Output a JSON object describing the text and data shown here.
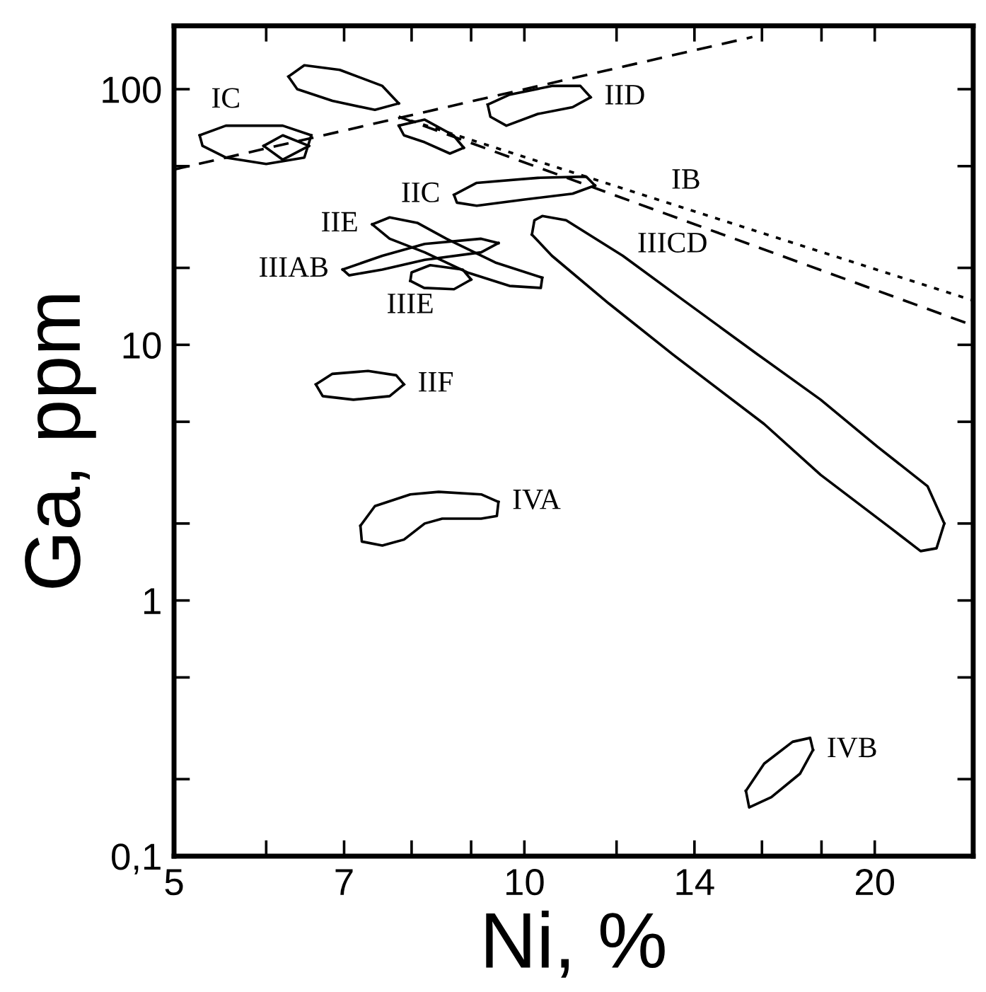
{
  "chart_data": {
    "type": "line",
    "xlabel": "Ni, %",
    "ylabel": "Ga, ppm",
    "log": "xy",
    "xlim": [
      5,
      24.3
    ],
    "ylim": [
      0.1,
      177
    ],
    "xticks": [
      5,
      {
        "value": 6,
        "label": null
      },
      7,
      {
        "value": 8,
        "label": null
      },
      {
        "value": 9,
        "label": null
      },
      10,
      {
        "value": 12,
        "label": null
      },
      14,
      {
        "value": 16,
        "label": null
      },
      {
        "value": 18,
        "label": null
      },
      20
    ],
    "yticks": [
      {
        "value": 0.1,
        "label": "0,1"
      },
      {
        "value": 0.2,
        "label": null
      },
      {
        "value": 0.5,
        "label": null
      },
      1,
      {
        "value": 2,
        "label": null
      },
      {
        "value": 5,
        "label": null
      },
      10,
      {
        "value": 20,
        "label": null
      },
      {
        "value": 50,
        "label": null
      },
      100
    ],
    "grid": false,
    "marker": "none",
    "series": [
      {
        "name": "IID",
        "color": "#000000",
        "line_style": "solid",
        "x": [
          9.3,
          9.7,
          10.56,
          11.17,
          11.4
        ],
        "values": [
          87,
          95,
          103,
          103,
          93
        ]
      },
      {
        "color": "#000000",
        "line_style": "solid",
        "x": [
          9.3,
          9.35,
          9.65,
          10.27,
          11.0,
          11.4
        ],
        "values": [
          87,
          78,
          72,
          80,
          85,
          93
        ]
      },
      {
        "name": "IIC",
        "color": "#000000",
        "line_style": "solid",
        "x": [
          8.7,
          9.1,
          10.27,
          11.3,
          11.5
        ],
        "values": [
          38.6,
          43,
          45,
          45.5,
          42
        ]
      },
      {
        "color": "#000000",
        "line_style": "solid",
        "x": [
          8.7,
          8.75,
          9.1,
          10.0,
          11.0,
          11.5
        ],
        "values": [
          38.6,
          36,
          35,
          37,
          39,
          42
        ]
      },
      {
        "name": "IIICD",
        "color": "#000000",
        "line_style": "solid",
        "x": [
          10.15,
          10.2,
          10.36,
          10.86,
          12.15,
          13.6,
          15.85,
          17.97,
          20.1,
          22.2,
          22.95
        ],
        "values": [
          27,
          30.7,
          31.9,
          30.7,
          22.3,
          15.3,
          9.2,
          6.1,
          4.0,
          2.8,
          2.0
        ]
      },
      {
        "color": "#000000",
        "line_style": "solid",
        "x": [
          10.15,
          10.56,
          11.82,
          13.4,
          16.07,
          17.97,
          20.7,
          21.9,
          22.6,
          22.95
        ],
        "values": [
          27,
          22.3,
          14.5,
          9.2,
          4.9,
          3.1,
          1.9,
          1.56,
          1.6,
          2.0
        ]
      },
      {
        "name": "IIIAB",
        "color": "#000000",
        "line_style": "solid",
        "x": [
          6.98,
          7.55,
          8.21,
          9.18,
          9.5
        ],
        "values": [
          19.7,
          22.3,
          24.8,
          26,
          25
        ]
      },
      {
        "color": "#000000",
        "line_style": "solid",
        "x": [
          6.98,
          7.07,
          7.55,
          8.21,
          9.18,
          9.5
        ],
        "values": [
          19.7,
          18.7,
          19.7,
          21.5,
          23,
          25
        ]
      },
      {
        "name": "IIE",
        "color": "#000000",
        "line_style": "solid",
        "x": [
          7.4,
          7.66,
          8.09,
          8.57,
          9.44,
          10.36
        ],
        "values": [
          29.6,
          31.5,
          30,
          26,
          21,
          18.3
        ]
      },
      {
        "color": "#000000",
        "line_style": "solid",
        "x": [
          7.4,
          7.66,
          8.21,
          8.93,
          9.71,
          10.33,
          10.36
        ],
        "values": [
          29.6,
          26,
          23,
          19.2,
          17,
          16.7,
          18.3
        ]
      },
      {
        "name": "IIIE",
        "color": "#000000",
        "line_style": "solid",
        "x": [
          7.98,
          8.0,
          8.3,
          8.85,
          9.0
        ],
        "values": [
          17.8,
          19.2,
          20.5,
          19.7,
          18
        ]
      },
      {
        "color": "#000000",
        "line_style": "solid",
        "x": [
          7.98,
          8.2,
          8.7,
          9.0
        ],
        "values": [
          17.8,
          16.7,
          16.5,
          18
        ]
      },
      {
        "name": "IIF",
        "color": "#000000",
        "line_style": "solid",
        "x": [
          6.62,
          6.84,
          7.34,
          7.76,
          7.88
        ],
        "values": [
          7.0,
          7.7,
          7.9,
          7.6,
          7.0
        ]
      },
      {
        "color": "#000000",
        "line_style": "solid",
        "x": [
          6.62,
          6.71,
          7.13,
          7.66,
          7.88
        ],
        "values": [
          7.0,
          6.3,
          6.1,
          6.3,
          7.0
        ]
      },
      {
        "color": "#000000",
        "line_style": "solid",
        "x": [
          7.23,
          7.44,
          7.98,
          8.44,
          9.18,
          9.5
        ],
        "values": [
          1.96,
          2.34,
          2.6,
          2.66,
          2.6,
          2.43
        ]
      },
      {
        "name": "IVA",
        "color": "#000000",
        "line_style": "solid",
        "x": [
          7.23,
          7.25,
          7.55,
          7.88,
          8.21,
          8.5,
          9.18,
          9.47,
          9.5
        ],
        "values": [
          1.96,
          1.7,
          1.64,
          1.73,
          2.0,
          2.09,
          2.09,
          2.14,
          2.43
        ]
      },
      {
        "name": "IVB",
        "color": "#000000",
        "line_style": "solid",
        "x": [
          15.5,
          16.07,
          17.0,
          17.6,
          17.7
        ],
        "values": [
          0.18,
          0.23,
          0.28,
          0.29,
          0.26
        ]
      },
      {
        "color": "#000000",
        "line_style": "solid",
        "x": [
          15.5,
          15.6,
          16.3,
          17.25,
          17.7
        ],
        "values": [
          0.18,
          0.155,
          0.17,
          0.21,
          0.26
        ]
      },
      {
        "color": "#000000",
        "line_style": "solid",
        "x": [
          6.27,
          6.47,
          6.94,
          7.55,
          7.8
        ],
        "values": [
          112,
          124,
          119,
          103,
          88
        ]
      },
      {
        "color": "#000000",
        "line_style": "solid",
        "x": [
          6.27,
          6.38,
          6.84,
          7.44,
          7.8
        ],
        "values": [
          112,
          100,
          90,
          83,
          88
        ]
      },
      {
        "color": "#000000",
        "line_style": "solid",
        "x": [
          7.8,
          8.21,
          8.69,
          8.87
        ],
        "values": [
          72,
          76,
          66,
          59
        ]
      },
      {
        "color": "#000000",
        "line_style": "solid",
        "x": [
          7.8,
          7.88,
          8.21,
          8.63,
          8.87
        ],
        "values": [
          72,
          66,
          62,
          56,
          59
        ]
      },
      {
        "name": "IC",
        "color": "#000000",
        "line_style": "solid",
        "x": [
          5.26,
          5.54,
          6.2,
          6.56
        ],
        "values": [
          66,
          72,
          72,
          66
        ]
      },
      {
        "color": "#000000",
        "line_style": "solid",
        "x": [
          5.26,
          5.29,
          5.54,
          6.0,
          6.47,
          6.56
        ],
        "values": [
          66,
          60,
          54,
          51,
          54,
          66
        ]
      },
      {
        "color": "#000000",
        "line_style": "solid",
        "x": [
          5.97,
          6.2,
          6.53
        ],
        "values": [
          60,
          66,
          60
        ]
      },
      {
        "color": "#000000",
        "line_style": "solid",
        "x": [
          5.97,
          6.2,
          6.53
        ],
        "values": [
          60,
          53,
          60
        ]
      },
      {
        "color": "#000000",
        "line_style": "dashed",
        "x": [
          5,
          15.7
        ],
        "values": [
          48.5,
          160
        ]
      },
      {
        "name": "IB",
        "color": "#000000",
        "line_style": "dotted",
        "x": [
          7.8,
          24.3
        ],
        "values": [
          78,
          14.9
        ]
      },
      {
        "color": "#000000",
        "line_style": "dashed",
        "x": [
          7.8,
          24.3
        ],
        "values": [
          78,
          11.9
        ]
      }
    ]
  }
}
